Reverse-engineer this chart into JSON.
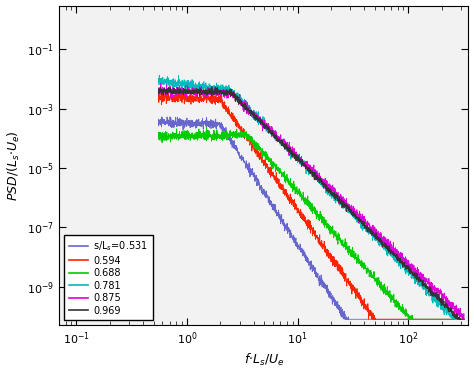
{
  "xlim": [
    0.07,
    350
  ],
  "ylim": [
    5e-11,
    3.0
  ],
  "legend_labels": [
    "s/L$_s$=0.531",
    "0.594",
    "0.688",
    "0.781",
    "0.875",
    "0.969"
  ],
  "colors": [
    "#6666cc",
    "#ff2200",
    "#00cc00",
    "#00bbbb",
    "#dd00dd",
    "#333333"
  ],
  "seeds": [
    10,
    20,
    30,
    40,
    50,
    60
  ],
  "lines": [
    {
      "f_start": 0.55,
      "amp_start": 0.00035,
      "f_knee": 2.0,
      "amp_knee": 0.0003,
      "decay": 5.8,
      "f_cutoff": 80,
      "noise": 0.18,
      "floor": 8e-11
    },
    {
      "f_start": 0.55,
      "amp_start": 0.0025,
      "f_knee": 2.0,
      "amp_knee": 0.002,
      "decay": 5.3,
      "f_cutoff": 100,
      "noise": 0.18,
      "floor": 8e-11
    },
    {
      "f_start": 0.55,
      "amp_start": 0.00012,
      "f_knee": 3.5,
      "amp_knee": 0.00013,
      "decay": 4.2,
      "f_cutoff": 200,
      "noise": 0.18,
      "floor": 8e-11
    },
    {
      "f_start": 0.55,
      "amp_start": 0.009,
      "f_knee": 2.5,
      "amp_knee": 0.004,
      "decay": 3.8,
      "f_cutoff": 200,
      "noise": 0.18,
      "floor": 8e-11
    },
    {
      "f_start": 0.55,
      "amp_start": 0.004,
      "f_knee": 2.5,
      "amp_knee": 0.0035,
      "decay": 3.6,
      "f_cutoff": 250,
      "noise": 0.18,
      "floor": 8e-11
    },
    {
      "f_start": 0.55,
      "amp_start": 0.004,
      "f_knee": 2.5,
      "amp_knee": 0.0035,
      "decay": 3.7,
      "f_cutoff": 250,
      "noise": 0.12,
      "floor": 8e-11
    }
  ]
}
